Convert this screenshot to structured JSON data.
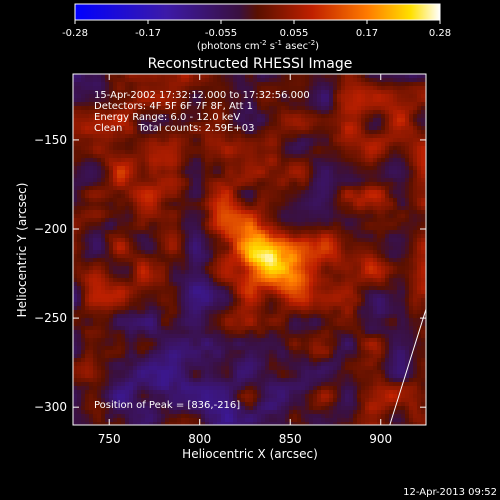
{
  "chart_data": {
    "type": "heatmap",
    "title": "Reconstructed RHESSI Image",
    "xlabel": "Heliocentric X (arcsec)",
    "ylabel": "Heliocentric Y (arcsec)",
    "xlim": [
      730,
      925
    ],
    "ylim": [
      -310,
      -113
    ],
    "x_ticks": [
      750,
      800,
      850,
      900
    ],
    "y_ticks": [
      -150,
      -200,
      -250,
      -300
    ],
    "colorbar": {
      "ticks": [
        "-0.28",
        "-0.17",
        "-0.055",
        "0.055",
        "0.17",
        "0.28"
      ],
      "min": -0.28,
      "max": 0.28,
      "unit_parts": {
        "a": "(photons cm",
        "b": "-2",
        "c": " s",
        "d": "-1",
        "e": " asec",
        "f": "-2",
        "g": ")"
      }
    },
    "info_lines": [
      "15-Apr-2002 17:32:12.000 to 17:32:56.000",
      "Detectors: 4F 5F 6F 7F 8F, Att 1",
      "Energy Range: 6.0 - 12.0 keV",
      "Clean     Total counts: 2.59E+03"
    ],
    "peak_label": "Position of Peak = [836,-216]",
    "peak": {
      "x": 836,
      "y": -216,
      "value": 0.28
    },
    "limb_line": [
      [
        905,
        -310
      ],
      [
        925,
        -245
      ]
    ],
    "secondary_blobs": [
      {
        "x": 775,
        "y": -165,
        "value": 0.07
      },
      {
        "x": 880,
        "y": -215,
        "value": 0.08
      },
      {
        "x": 760,
        "y": -235,
        "value": 0.05
      },
      {
        "x": 905,
        "y": -150,
        "value": 0.04
      }
    ],
    "grid": false,
    "colormap": "blue-purple-red-orange-yellow-white"
  },
  "footer": {
    "timestamp": "12-Apr-2013 09:52"
  }
}
